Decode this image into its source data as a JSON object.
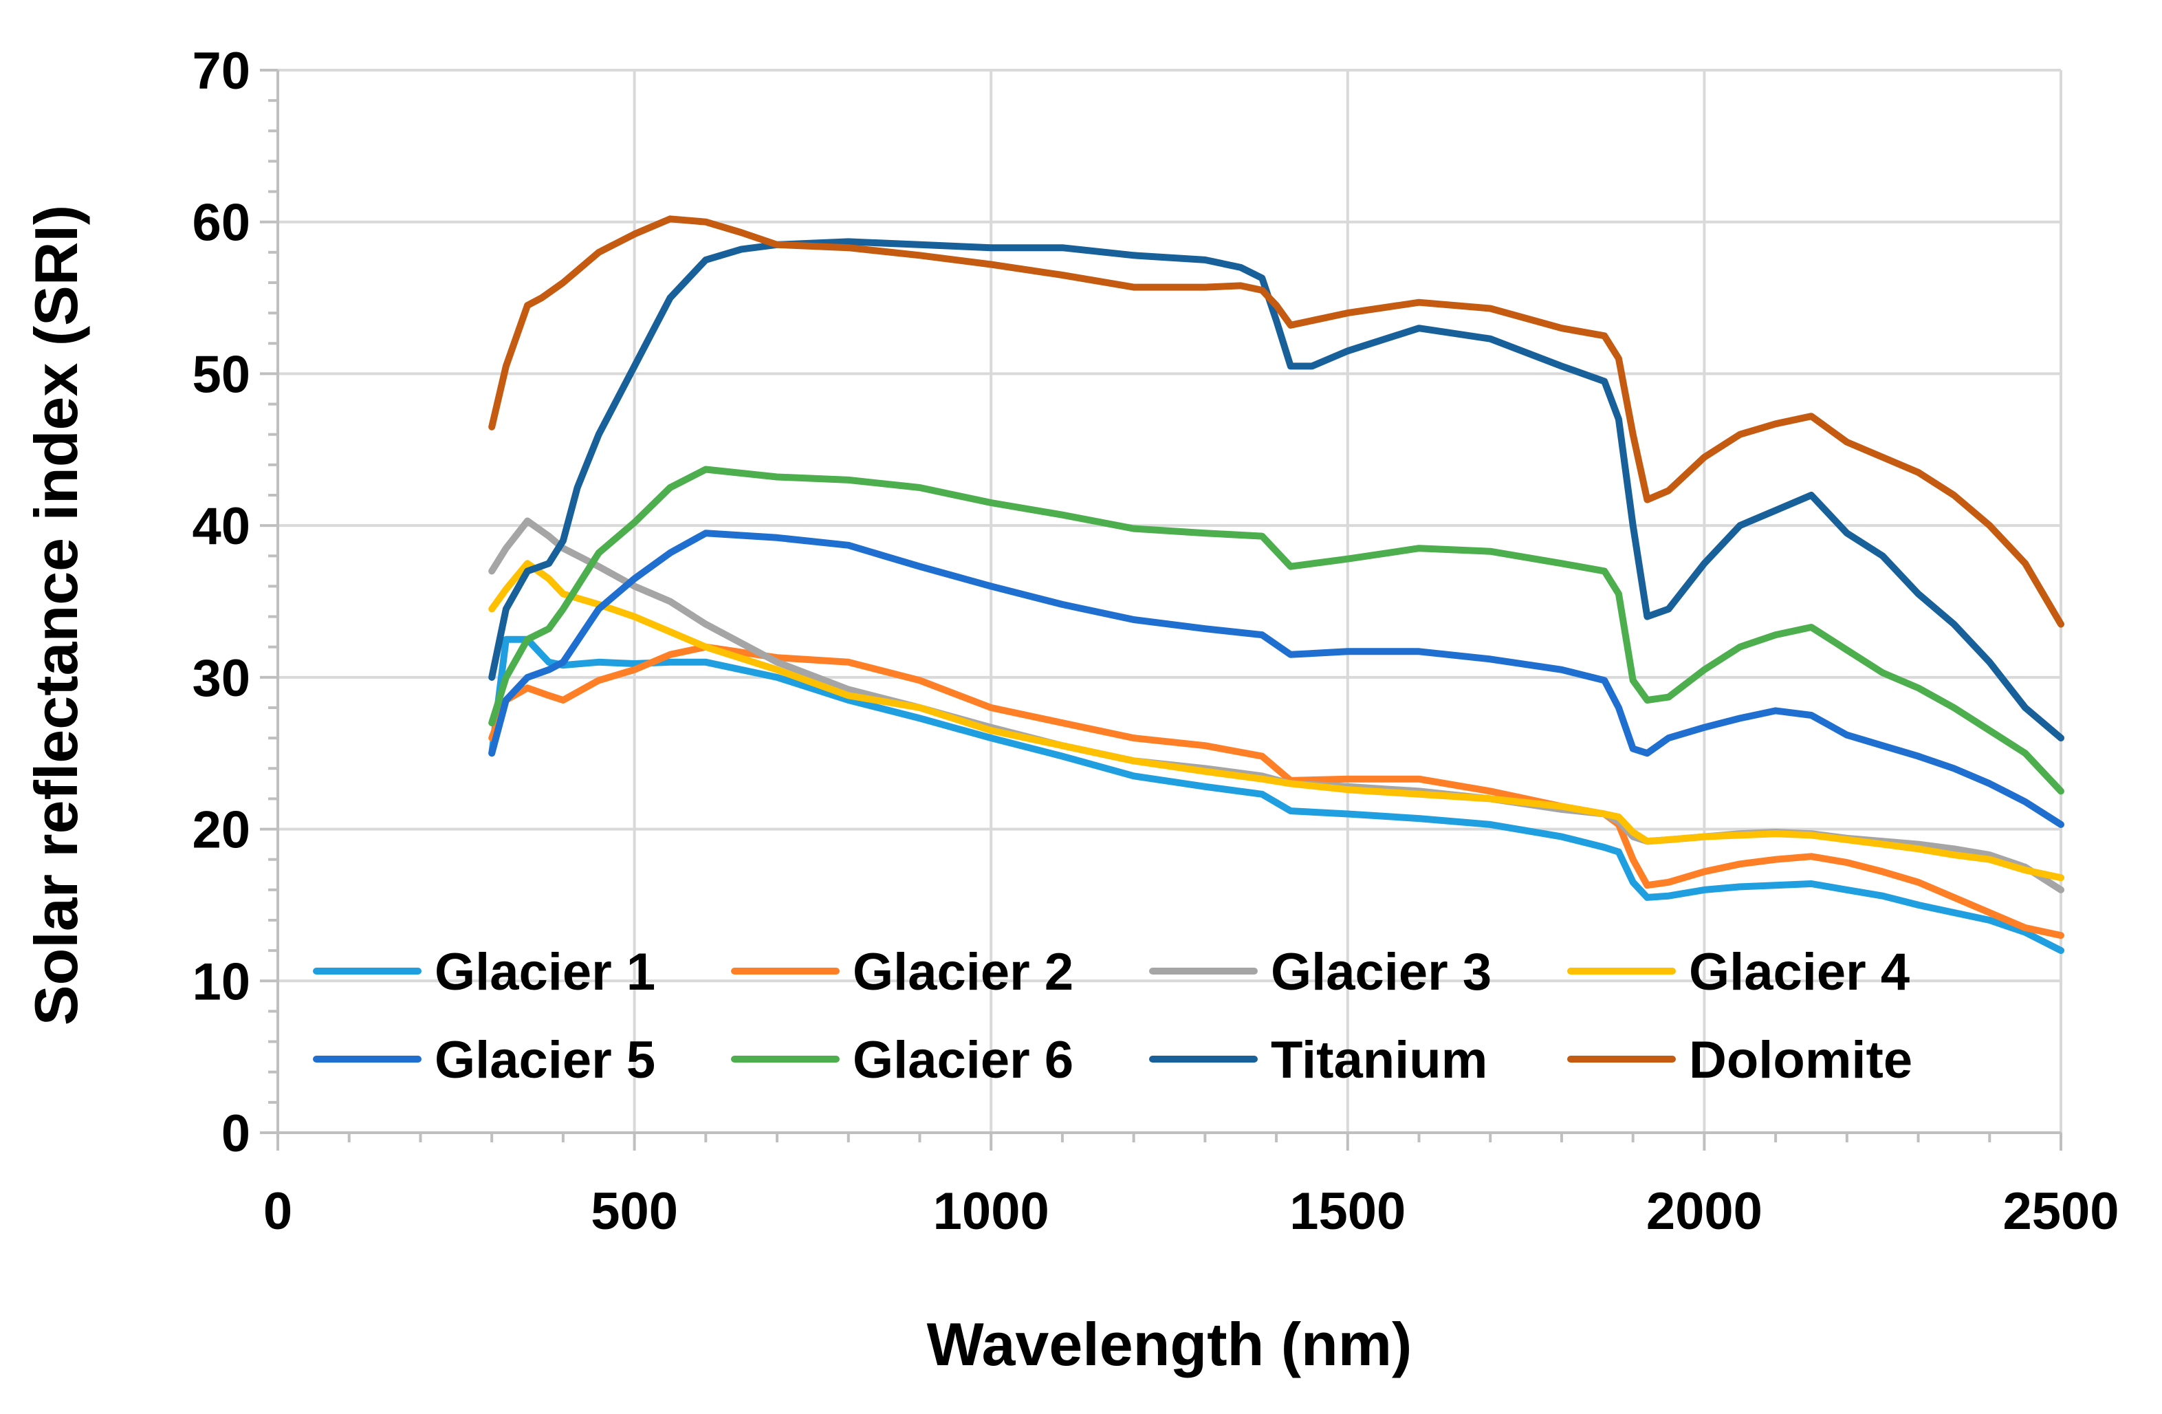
{
  "chart_data": {
    "type": "line",
    "title": "",
    "xlabel": "Wavelength (nm)",
    "ylabel": "Solar reflectance index (SRI)",
    "xlim": [
      0,
      2500
    ],
    "ylim": [
      0,
      70
    ],
    "xticks": [
      0,
      500,
      1000,
      1500,
      2000,
      2500
    ],
    "yticks": [
      0,
      10,
      20,
      30,
      40,
      50,
      60,
      70
    ],
    "xtick_labels": [
      "0",
      "500",
      "1000",
      "1500",
      "2000",
      "2500"
    ],
    "ytick_labels": [
      "0",
      "10",
      "20",
      "30",
      "40",
      "50",
      "60",
      "70"
    ],
    "grid": true,
    "legend_position": "bottom-left",
    "series": [
      {
        "name": "Glacier 1",
        "color": "#1f9fe0",
        "x": [
          300,
          320,
          350,
          380,
          400,
          450,
          500,
          550,
          600,
          700,
          800,
          900,
          1000,
          1100,
          1200,
          1300,
          1380,
          1420,
          1500,
          1600,
          1700,
          1800,
          1860,
          1880,
          1900,
          1920,
          1950,
          2000,
          2050,
          2100,
          2150,
          2200,
          2250,
          2300,
          2350,
          2400,
          2450,
          2500
        ],
        "y": [
          25,
          32.5,
          32.5,
          31,
          30.8,
          31,
          30.9,
          31,
          31,
          30,
          28.5,
          27.3,
          26,
          24.8,
          23.5,
          22.8,
          22.3,
          21.2,
          21,
          20.7,
          20.3,
          19.5,
          18.8,
          18.5,
          16.5,
          15.5,
          15.6,
          16,
          16.2,
          16.3,
          16.4,
          16,
          15.6,
          15,
          14.5,
          14,
          13.2,
          12
        ]
      },
      {
        "name": "Glacier 2",
        "color": "#ff7f27",
        "x": [
          300,
          320,
          350,
          380,
          400,
          450,
          500,
          550,
          600,
          700,
          800,
          900,
          1000,
          1100,
          1200,
          1300,
          1380,
          1420,
          1500,
          1600,
          1700,
          1800,
          1860,
          1880,
          1900,
          1920,
          1950,
          2000,
          2050,
          2100,
          2150,
          2200,
          2250,
          2300,
          2350,
          2400,
          2450,
          2500
        ],
        "y": [
          26,
          28.5,
          29.3,
          28.8,
          28.5,
          29.8,
          30.5,
          31.5,
          32,
          31.3,
          31,
          29.8,
          28,
          27,
          26,
          25.5,
          24.8,
          23.2,
          23.3,
          23.3,
          22.5,
          21.5,
          21,
          20.3,
          18,
          16.3,
          16.5,
          17.2,
          17.7,
          18,
          18.2,
          17.8,
          17.2,
          16.5,
          15.5,
          14.5,
          13.5,
          13
        ]
      },
      {
        "name": "Glacier 3",
        "color": "#a5a5a5",
        "x": [
          300,
          320,
          350,
          380,
          400,
          450,
          500,
          550,
          600,
          700,
          800,
          900,
          1000,
          1100,
          1200,
          1300,
          1380,
          1420,
          1500,
          1600,
          1700,
          1800,
          1860,
          1880,
          1900,
          1920,
          1950,
          2000,
          2050,
          2100,
          2150,
          2200,
          2250,
          2300,
          2350,
          2400,
          2450,
          2500
        ],
        "y": [
          37,
          38.5,
          40.3,
          39.3,
          38.5,
          37.3,
          36,
          35,
          33.5,
          31,
          29.2,
          28,
          26.7,
          25.5,
          24.5,
          24,
          23.5,
          23,
          22.8,
          22.5,
          22,
          21.3,
          21,
          20.5,
          19.5,
          19.2,
          19.3,
          19.5,
          19.7,
          19.8,
          19.7,
          19.4,
          19.2,
          19,
          18.7,
          18.3,
          17.5,
          16
        ]
      },
      {
        "name": "Glacier 4",
        "color": "#ffc000",
        "x": [
          300,
          320,
          350,
          380,
          400,
          450,
          500,
          550,
          600,
          700,
          800,
          900,
          1000,
          1100,
          1200,
          1300,
          1380,
          1420,
          1500,
          1600,
          1700,
          1800,
          1860,
          1880,
          1900,
          1920,
          1950,
          2000,
          2050,
          2100,
          2150,
          2200,
          2250,
          2300,
          2350,
          2400,
          2450,
          2500
        ],
        "y": [
          34.5,
          35.8,
          37.5,
          36.5,
          35.5,
          34.8,
          34,
          33,
          32,
          30.5,
          28.8,
          28,
          26.5,
          25.5,
          24.5,
          23.8,
          23.3,
          23,
          22.6,
          22.3,
          22,
          21.5,
          21,
          20.8,
          19.8,
          19.2,
          19.3,
          19.5,
          19.6,
          19.7,
          19.6,
          19.3,
          19,
          18.7,
          18.3,
          18,
          17.3,
          16.8
        ]
      },
      {
        "name": "Glacier 5",
        "color": "#1f6fd0",
        "x": [
          300,
          320,
          350,
          380,
          400,
          450,
          500,
          550,
          600,
          700,
          800,
          850,
          900,
          1000,
          1100,
          1200,
          1300,
          1380,
          1420,
          1500,
          1600,
          1700,
          1800,
          1860,
          1880,
          1900,
          1920,
          1950,
          2000,
          2050,
          2100,
          2150,
          2200,
          2250,
          2300,
          2350,
          2400,
          2450,
          2500
        ],
        "y": [
          25,
          28.5,
          30,
          30.5,
          31,
          34.5,
          36.5,
          38.2,
          39.5,
          39.2,
          38.7,
          38,
          37.3,
          36,
          34.8,
          33.8,
          33.2,
          32.8,
          31.5,
          31.7,
          31.7,
          31.2,
          30.5,
          29.8,
          28,
          25.3,
          25,
          26,
          26.7,
          27.3,
          27.8,
          27.5,
          26.2,
          25.5,
          24.8,
          24,
          23,
          21.8,
          20.3
        ]
      },
      {
        "name": "Glacier 6",
        "color": "#4cae4c",
        "x": [
          300,
          320,
          350,
          380,
          400,
          450,
          500,
          550,
          600,
          700,
          800,
          900,
          1000,
          1100,
          1200,
          1300,
          1380,
          1420,
          1500,
          1600,
          1700,
          1800,
          1860,
          1880,
          1900,
          1920,
          1950,
          2000,
          2050,
          2100,
          2150,
          2200,
          2250,
          2300,
          2350,
          2400,
          2450,
          2500
        ],
        "y": [
          27,
          30,
          32.5,
          33.2,
          34.5,
          38.2,
          40.2,
          42.5,
          43.7,
          43.2,
          43,
          42.5,
          41.5,
          40.7,
          39.8,
          39.5,
          39.3,
          37.3,
          37.8,
          38.5,
          38.3,
          37.5,
          37,
          35.5,
          29.8,
          28.5,
          28.7,
          30.5,
          32,
          32.8,
          33.3,
          31.8,
          30.3,
          29.3,
          28,
          26.5,
          25,
          22.5
        ]
      },
      {
        "name": "Titanium",
        "color": "#17609a",
        "x": [
          300,
          320,
          350,
          380,
          400,
          420,
          450,
          500,
          550,
          600,
          650,
          700,
          800,
          900,
          1000,
          1100,
          1200,
          1300,
          1350,
          1380,
          1400,
          1420,
          1450,
          1500,
          1600,
          1700,
          1800,
          1860,
          1880,
          1900,
          1920,
          1950,
          2000,
          2050,
          2100,
          2150,
          2200,
          2250,
          2300,
          2350,
          2400,
          2450,
          2500
        ],
        "y": [
          30,
          34.5,
          37,
          37.5,
          39,
          42.5,
          46,
          50.5,
          55,
          57.5,
          58.2,
          58.5,
          58.7,
          58.5,
          58.3,
          58.3,
          57.8,
          57.5,
          57,
          56.3,
          53.5,
          50.5,
          50.5,
          51.5,
          53,
          52.3,
          50.5,
          49.5,
          47,
          40,
          34,
          34.5,
          37.5,
          40,
          41,
          42,
          39.5,
          38,
          35.5,
          33.5,
          31,
          28,
          26
        ]
      },
      {
        "name": "Dolomite",
        "color": "#c55a11",
        "x": [
          300,
          320,
          350,
          370,
          400,
          450,
          500,
          550,
          600,
          650,
          700,
          800,
          900,
          1000,
          1100,
          1200,
          1300,
          1350,
          1380,
          1400,
          1420,
          1450,
          1500,
          1600,
          1700,
          1800,
          1860,
          1880,
          1900,
          1920,
          1950,
          2000,
          2050,
          2100,
          2150,
          2200,
          2250,
          2300,
          2350,
          2400,
          2450,
          2500
        ],
        "y": [
          46.5,
          50.5,
          54.5,
          55,
          56,
          58,
          59.2,
          60.2,
          60,
          59.3,
          58.5,
          58.3,
          57.8,
          57.2,
          56.5,
          55.7,
          55.7,
          55.8,
          55.5,
          54.5,
          53.2,
          53.5,
          54,
          54.7,
          54.3,
          53,
          52.5,
          51,
          46,
          41.7,
          42.3,
          44.5,
          46,
          46.7,
          47.2,
          45.5,
          44.5,
          43.5,
          42,
          40,
          37.5,
          33.5
        ]
      }
    ]
  }
}
